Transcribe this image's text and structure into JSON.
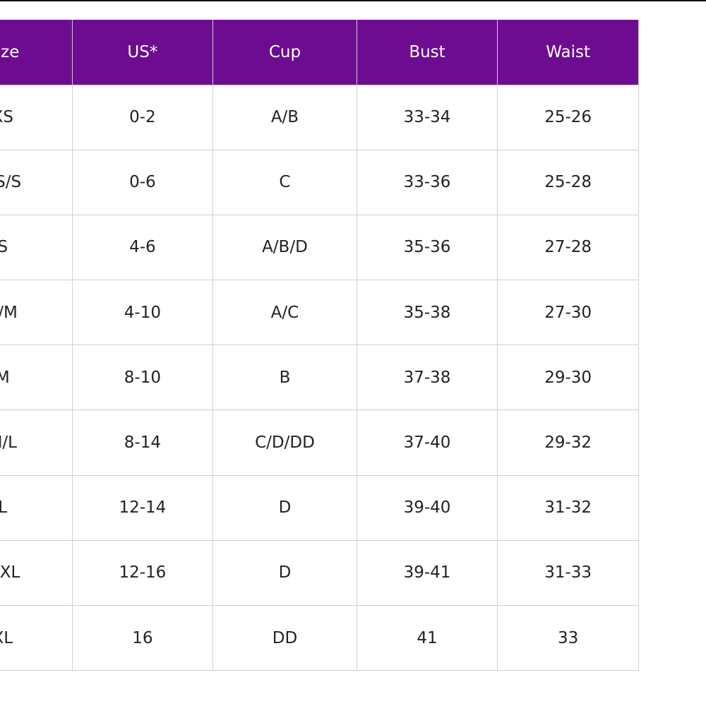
{
  "table": {
    "header": [
      "Size",
      "US*",
      "Cup",
      "Bust",
      "Waist"
    ],
    "rows": [
      [
        "XS",
        "0-2",
        "A/B",
        "33-34",
        "25-26"
      ],
      [
        "XS/S",
        "0-6",
        "C",
        "33-36",
        "25-28"
      ],
      [
        "S",
        "4-6",
        "A/B/D",
        "35-36",
        "27-28"
      ],
      [
        "S/M",
        "4-10",
        "A/C",
        "35-38",
        "27-30"
      ],
      [
        "M",
        "8-10",
        "B",
        "37-38",
        "29-30"
      ],
      [
        "M/L",
        "8-14",
        "C/D/DD",
        "37-40",
        "29-32"
      ],
      [
        "L",
        "12-14",
        "D",
        "39-40",
        "31-32"
      ],
      [
        "L/XL",
        "12-16",
        "D",
        "39-41",
        "31-33"
      ],
      [
        "XL",
        "16",
        "DD",
        "41",
        "33"
      ]
    ]
  }
}
